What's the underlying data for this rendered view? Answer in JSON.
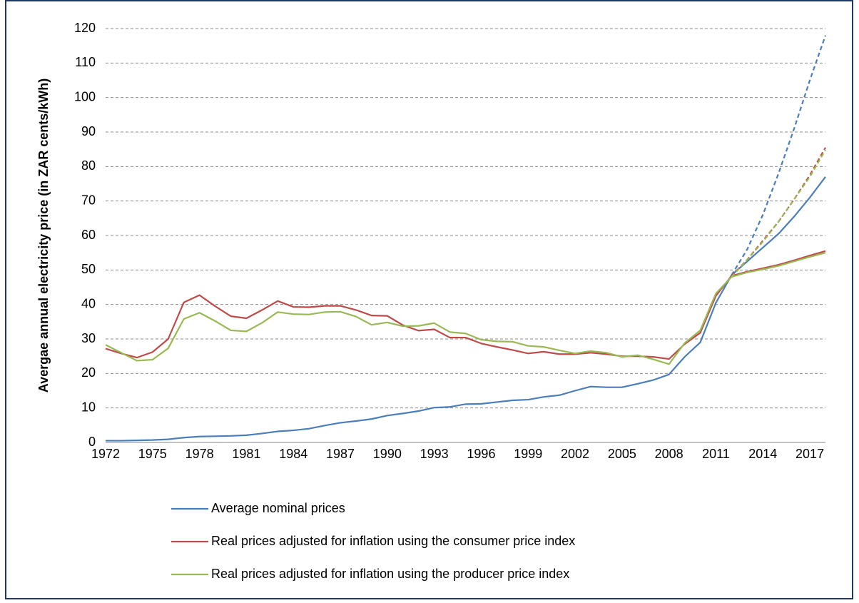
{
  "chart_data": {
    "type": "line",
    "y_label": "Avergae annual  electricity price (in ZAR cents/kWh)",
    "categories": [
      "1972",
      null,
      null,
      "1975",
      null,
      null,
      "1978",
      null,
      null,
      "1981",
      null,
      null,
      "1984",
      null,
      null,
      "1987",
      null,
      null,
      "1990",
      null,
      null,
      "1993",
      null,
      null,
      "1996",
      null,
      null,
      "1999",
      null,
      null,
      "2002",
      null,
      null,
      "2005",
      null,
      null,
      "2008",
      null,
      null,
      "2011",
      null,
      null,
      "2014",
      null,
      null,
      "2017",
      null
    ],
    "ylim": [
      0,
      120
    ],
    "yticks": [
      0,
      10,
      20,
      30,
      40,
      50,
      60,
      70,
      80,
      90,
      100,
      110,
      120
    ],
    "grid": true,
    "legend_position": "bottom",
    "series": [
      {
        "name": "Average nominal prices",
        "color": "#4a7ebb",
        "values": [
          0.5,
          0.5,
          0.6,
          0.7,
          0.9,
          1.4,
          1.7,
          1.8,
          1.9,
          2.1,
          2.6,
          3.2,
          3.5,
          4.0,
          4.9,
          5.7,
          6.2,
          6.8,
          7.8,
          8.4,
          9.1,
          10.1,
          10.3,
          11.1,
          11.2,
          11.7,
          12.2,
          12.4,
          13.2,
          13.7,
          15.0,
          16.2,
          16.0,
          16.0,
          17.0,
          18.1,
          19.7,
          24.8,
          29.0,
          40.5,
          48.5,
          52.5,
          56.5,
          60.5,
          65.5,
          71.0,
          77.0
        ],
        "dashed_values": [
          null,
          null,
          null,
          null,
          null,
          null,
          null,
          null,
          null,
          null,
          null,
          null,
          null,
          null,
          null,
          null,
          null,
          null,
          null,
          null,
          null,
          null,
          null,
          null,
          null,
          null,
          null,
          null,
          null,
          null,
          null,
          null,
          null,
          null,
          null,
          null,
          null,
          null,
          null,
          null,
          48.5,
          56.0,
          66.0,
          78.0,
          91.0,
          105.0,
          118.0
        ]
      },
      {
        "name": "Real prices adjusted for inflation using the consumer price index",
        "color": "#be4b48",
        "values": [
          27.2,
          25.8,
          24.6,
          26.2,
          30.0,
          40.6,
          42.7,
          39.5,
          36.6,
          36.0,
          38.4,
          41.0,
          39.3,
          39.2,
          39.6,
          39.6,
          38.4,
          36.8,
          36.7,
          34.0,
          32.4,
          32.8,
          30.4,
          30.4,
          28.7,
          27.7,
          26.8,
          25.8,
          26.3,
          25.6,
          25.6,
          26.0,
          25.6,
          25.0,
          25.0,
          24.8,
          24.2,
          28.5,
          31.8,
          42.5,
          48.3,
          49.5,
          50.5,
          51.5,
          52.8,
          54.2,
          55.5
        ],
        "dashed_values": [
          null,
          null,
          null,
          null,
          null,
          null,
          null,
          null,
          null,
          null,
          null,
          null,
          null,
          null,
          null,
          null,
          null,
          null,
          null,
          null,
          null,
          null,
          null,
          null,
          null,
          null,
          null,
          null,
          null,
          null,
          null,
          null,
          null,
          null,
          null,
          null,
          null,
          null,
          null,
          null,
          48.3,
          53.0,
          58.5,
          64.0,
          70.5,
          77.5,
          85.5
        ]
      },
      {
        "name": "Real prices adjusted for inflation using the producer price index",
        "color": "#98b954",
        "values": [
          28.3,
          26.0,
          23.7,
          24.0,
          27.3,
          35.8,
          37.6,
          35.2,
          32.5,
          32.2,
          34.7,
          37.8,
          37.2,
          37.1,
          37.8,
          37.9,
          36.5,
          34.1,
          34.8,
          33.7,
          33.8,
          34.6,
          32.0,
          31.6,
          29.8,
          29.3,
          29.2,
          28.0,
          27.7,
          26.7,
          25.8,
          26.5,
          26.0,
          24.8,
          25.3,
          24.1,
          22.7,
          28.8,
          32.5,
          43.2,
          48.0,
          49.3,
          50.2,
          51.2,
          52.5,
          53.8,
          55.0
        ],
        "dashed_values": [
          null,
          null,
          null,
          null,
          null,
          null,
          null,
          null,
          null,
          null,
          null,
          null,
          null,
          null,
          null,
          null,
          null,
          null,
          null,
          null,
          null,
          null,
          null,
          null,
          null,
          null,
          null,
          null,
          null,
          null,
          null,
          null,
          null,
          null,
          null,
          null,
          null,
          null,
          null,
          null,
          48.0,
          53.0,
          58.2,
          64.0,
          70.5,
          77.0,
          84.8
        ]
      }
    ]
  }
}
